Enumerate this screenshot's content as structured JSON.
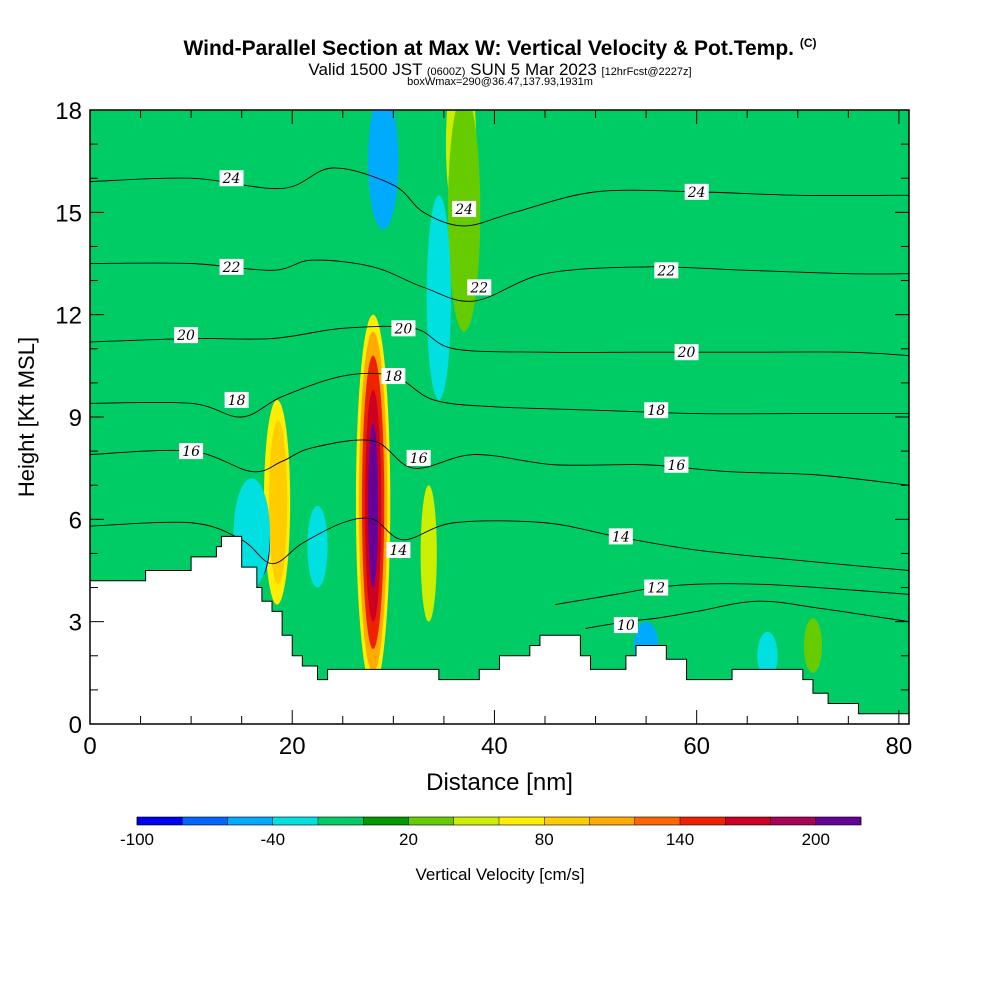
{
  "title": {
    "main": "Wind-Parallel Section at Max W: Vertical Velocity & Pot.Temp.",
    "copyright": "(C)",
    "valid_prefix": "Valid 1500 JST",
    "valid_utc": "(0600Z)",
    "valid_date": "SUN 5 Mar 2023",
    "forecast": "[12hrFcst@2227z]",
    "box_info": "boxWmax=290@36.47,137.93,1931m"
  },
  "chart_data": {
    "type": "heatmap",
    "xlabel": "Distance [nm]",
    "ylabel": "Height [Kft MSL]",
    "xlim": [
      0,
      81
    ],
    "ylim": [
      0,
      18
    ],
    "x_ticks": [
      0,
      20,
      40,
      60,
      80
    ],
    "y_ticks": [
      0,
      3,
      6,
      9,
      12,
      15,
      18
    ],
    "colorbar": {
      "label": "Vertical Velocity [cm/s]",
      "tick_labels": [
        "-100",
        "-40",
        "20",
        "80",
        "140",
        "200"
      ],
      "tick_values": [
        -100,
        -40,
        20,
        80,
        140,
        200
      ],
      "bins": [
        -100,
        -80,
        -60,
        -40,
        -20,
        0,
        20,
        40,
        60,
        80,
        100,
        120,
        140,
        160,
        180,
        200,
        220
      ],
      "colors": [
        "#0000ee",
        "#0066ff",
        "#00aaff",
        "#00e0e0",
        "#00cc66",
        "#009900",
        "#66cc00",
        "#ccee00",
        "#ffee00",
        "#ffcc00",
        "#ffaa00",
        "#ff6600",
        "#ee2200",
        "#cc0022",
        "#aa0055",
        "#660099"
      ]
    },
    "background_color": "#00cc66",
    "terrain": [
      [
        0,
        4.2
      ],
      [
        5.5,
        4.2
      ],
      [
        5.5,
        4.5
      ],
      [
        10,
        4.5
      ],
      [
        10,
        4.9
      ],
      [
        12.5,
        4.9
      ],
      [
        12.5,
        5.2
      ],
      [
        13,
        5.2
      ],
      [
        13,
        5.5
      ],
      [
        15,
        5.5
      ],
      [
        15,
        4.6
      ],
      [
        16.5,
        4.6
      ],
      [
        16.5,
        4.0
      ],
      [
        17,
        4.0
      ],
      [
        17,
        3.6
      ],
      [
        18,
        3.6
      ],
      [
        18,
        3.3
      ],
      [
        19,
        3.3
      ],
      [
        19,
        2.6
      ],
      [
        20,
        2.6
      ],
      [
        20,
        2.0
      ],
      [
        21,
        2.0
      ],
      [
        21,
        1.7
      ],
      [
        22.5,
        1.7
      ],
      [
        22.5,
        1.3
      ],
      [
        23.5,
        1.3
      ],
      [
        23.5,
        1.6
      ],
      [
        34.5,
        1.6
      ],
      [
        34.5,
        1.3
      ],
      [
        38.5,
        1.3
      ],
      [
        38.5,
        1.6
      ],
      [
        40.5,
        1.6
      ],
      [
        40.5,
        2.0
      ],
      [
        43.5,
        2.0
      ],
      [
        43.5,
        2.3
      ],
      [
        44.5,
        2.3
      ],
      [
        44.5,
        2.6
      ],
      [
        48.5,
        2.6
      ],
      [
        48.5,
        2.0
      ],
      [
        49.5,
        2.0
      ],
      [
        49.5,
        1.6
      ],
      [
        53,
        1.6
      ],
      [
        53,
        2.0
      ],
      [
        54,
        2.0
      ],
      [
        54,
        2.3
      ],
      [
        57,
        2.3
      ],
      [
        57,
        1.9
      ],
      [
        59,
        1.9
      ],
      [
        59,
        1.3
      ],
      [
        63.5,
        1.3
      ],
      [
        63.5,
        1.6
      ],
      [
        70.5,
        1.6
      ],
      [
        70.5,
        1.3
      ],
      [
        71.5,
        1.3
      ],
      [
        71.5,
        0.9
      ],
      [
        73,
        0.9
      ],
      [
        73,
        0.6
      ],
      [
        76,
        0.6
      ],
      [
        76,
        0.3
      ],
      [
        81,
        0.3
      ]
    ],
    "w_features": [
      {
        "x": 36.7,
        "y": 17.0,
        "rx": 1.5,
        "ry": 2.5,
        "w": 40
      },
      {
        "x": 37.0,
        "y": 15.0,
        "rx": 1.6,
        "ry": 3.5,
        "w": 35
      },
      {
        "x": 29.0,
        "y": 16.5,
        "rx": 1.5,
        "ry": 2.0,
        "w": -50
      },
      {
        "x": 34.5,
        "y": 12.5,
        "rx": 1.2,
        "ry": 3.0,
        "w": -30
      },
      {
        "x": 18.5,
        "y": 6.5,
        "rx": 1.3,
        "ry": 3.0,
        "w": 60
      },
      {
        "x": 18.6,
        "y": 6.5,
        "rx": 0.9,
        "ry": 2.4,
        "w": 80
      },
      {
        "x": 28.0,
        "y": 6.5,
        "rx": 1.7,
        "ry": 5.5,
        "w": 70
      },
      {
        "x": 28.0,
        "y": 6.5,
        "rx": 1.4,
        "ry": 5.0,
        "w": 100
      },
      {
        "x": 28.0,
        "y": 6.5,
        "rx": 1.1,
        "ry": 4.3,
        "w": 140
      },
      {
        "x": 28.0,
        "y": 6.4,
        "rx": 0.8,
        "ry": 3.4,
        "w": 170
      },
      {
        "x": 28.0,
        "y": 6.4,
        "rx": 0.5,
        "ry": 2.4,
        "w": 200
      },
      {
        "x": 16.8,
        "y": 5.3,
        "rx": 1.0,
        "ry": 1.0,
        "w": -90
      },
      {
        "x": 16.0,
        "y": 5.6,
        "rx": 1.8,
        "ry": 1.6,
        "w": -40
      },
      {
        "x": 22.5,
        "y": 5.2,
        "rx": 1.0,
        "ry": 1.2,
        "w": -30
      },
      {
        "x": 33.5,
        "y": 5.0,
        "rx": 0.8,
        "ry": 2.0,
        "w": 40
      },
      {
        "x": 55.0,
        "y": 2.3,
        "rx": 1.2,
        "ry": 0.7,
        "w": -50
      },
      {
        "x": 67.0,
        "y": 2.0,
        "rx": 1.0,
        "ry": 0.7,
        "w": -40
      },
      {
        "x": 71.5,
        "y": 2.3,
        "rx": 0.9,
        "ry": 0.8,
        "w": 30
      }
    ],
    "theta_contours": [
      {
        "level": 10,
        "points": [
          [
            49,
            2.8
          ],
          [
            53,
            3.0
          ],
          [
            56,
            3.1
          ],
          [
            60,
            3.3
          ],
          [
            66,
            3.6
          ],
          [
            72,
            3.4
          ],
          [
            81,
            3.0
          ]
        ]
      },
      {
        "level": 12,
        "points": [
          [
            46,
            3.5
          ],
          [
            52,
            3.8
          ],
          [
            56,
            4.0
          ],
          [
            60,
            4.1
          ],
          [
            66,
            4.1
          ],
          [
            72,
            4.0
          ],
          [
            81,
            3.8
          ]
        ]
      },
      {
        "level": 14,
        "points": [
          [
            0,
            5.8
          ],
          [
            10,
            5.9
          ],
          [
            15,
            5.4
          ],
          [
            18,
            4.7
          ],
          [
            21,
            5.3
          ],
          [
            25,
            5.9
          ],
          [
            28,
            6.0
          ],
          [
            31,
            5.4
          ],
          [
            36,
            5.9
          ],
          [
            45,
            5.9
          ],
          [
            52,
            5.5
          ],
          [
            60,
            5.1
          ],
          [
            70,
            4.8
          ],
          [
            81,
            4.5
          ]
        ]
      },
      {
        "level": 16,
        "points": [
          [
            0,
            7.9
          ],
          [
            10,
            8.0
          ],
          [
            16,
            7.4
          ],
          [
            19,
            7.7
          ],
          [
            22,
            8.1
          ],
          [
            28,
            8.3
          ],
          [
            32,
            7.5
          ],
          [
            38,
            7.9
          ],
          [
            46,
            7.6
          ],
          [
            55,
            7.6
          ],
          [
            63,
            7.4
          ],
          [
            72,
            7.3
          ],
          [
            81,
            7.0
          ]
        ]
      },
      {
        "level": 18,
        "points": [
          [
            0,
            9.4
          ],
          [
            10,
            9.4
          ],
          [
            15,
            9.0
          ],
          [
            19,
            9.6
          ],
          [
            25,
            10.2
          ],
          [
            30,
            10.2
          ],
          [
            34,
            9.5
          ],
          [
            40,
            9.3
          ],
          [
            50,
            9.2
          ],
          [
            60,
            9.1
          ],
          [
            70,
            9.1
          ],
          [
            81,
            9.1
          ]
        ]
      },
      {
        "level": 20,
        "points": [
          [
            0,
            11.2
          ],
          [
            10,
            11.3
          ],
          [
            18,
            11.3
          ],
          [
            25,
            11.6
          ],
          [
            32,
            11.6
          ],
          [
            36,
            11.0
          ],
          [
            45,
            10.9
          ],
          [
            55,
            10.9
          ],
          [
            65,
            10.9
          ],
          [
            75,
            10.9
          ],
          [
            81,
            10.8
          ]
        ]
      },
      {
        "level": 22,
        "points": [
          [
            0,
            13.5
          ],
          [
            10,
            13.5
          ],
          [
            18,
            13.3
          ],
          [
            22,
            13.6
          ],
          [
            28,
            13.4
          ],
          [
            33,
            12.8
          ],
          [
            38,
            12.4
          ],
          [
            45,
            13.2
          ],
          [
            55,
            13.4
          ],
          [
            65,
            13.3
          ],
          [
            75,
            13.2
          ],
          [
            81,
            13.2
          ]
        ]
      },
      {
        "level": 24,
        "points": [
          [
            0,
            15.9
          ],
          [
            10,
            16.0
          ],
          [
            19,
            15.7
          ],
          [
            24,
            16.3
          ],
          [
            30,
            15.8
          ],
          [
            33,
            15.0
          ],
          [
            37,
            14.6
          ],
          [
            42,
            15.0
          ],
          [
            50,
            15.6
          ],
          [
            60,
            15.6
          ],
          [
            70,
            15.5
          ],
          [
            81,
            15.5
          ]
        ]
      }
    ],
    "contour_labels": [
      {
        "text": "24",
        "x": 14,
        "y": 16.0
      },
      {
        "text": "22",
        "x": 14,
        "y": 13.4
      },
      {
        "text": "20",
        "x": 9.5,
        "y": 11.4
      },
      {
        "text": "18",
        "x": 14.5,
        "y": 9.5
      },
      {
        "text": "16",
        "x": 10,
        "y": 8.0
      },
      {
        "text": "24",
        "x": 37,
        "y": 15.1
      },
      {
        "text": "22",
        "x": 38.5,
        "y": 12.8
      },
      {
        "text": "20",
        "x": 31,
        "y": 11.6
      },
      {
        "text": "18",
        "x": 30,
        "y": 10.2
      },
      {
        "text": "16",
        "x": 32.5,
        "y": 7.8
      },
      {
        "text": "14",
        "x": 30.5,
        "y": 5.1
      },
      {
        "text": "24",
        "x": 60,
        "y": 15.6
      },
      {
        "text": "22",
        "x": 57,
        "y": 13.3
      },
      {
        "text": "20",
        "x": 59,
        "y": 10.9
      },
      {
        "text": "18",
        "x": 56,
        "y": 9.2
      },
      {
        "text": "16",
        "x": 58,
        "y": 7.6
      },
      {
        "text": "14",
        "x": 52.5,
        "y": 5.5
      },
      {
        "text": "12",
        "x": 56,
        "y": 4.0
      },
      {
        "text": "10",
        "x": 53,
        "y": 2.9
      }
    ]
  }
}
